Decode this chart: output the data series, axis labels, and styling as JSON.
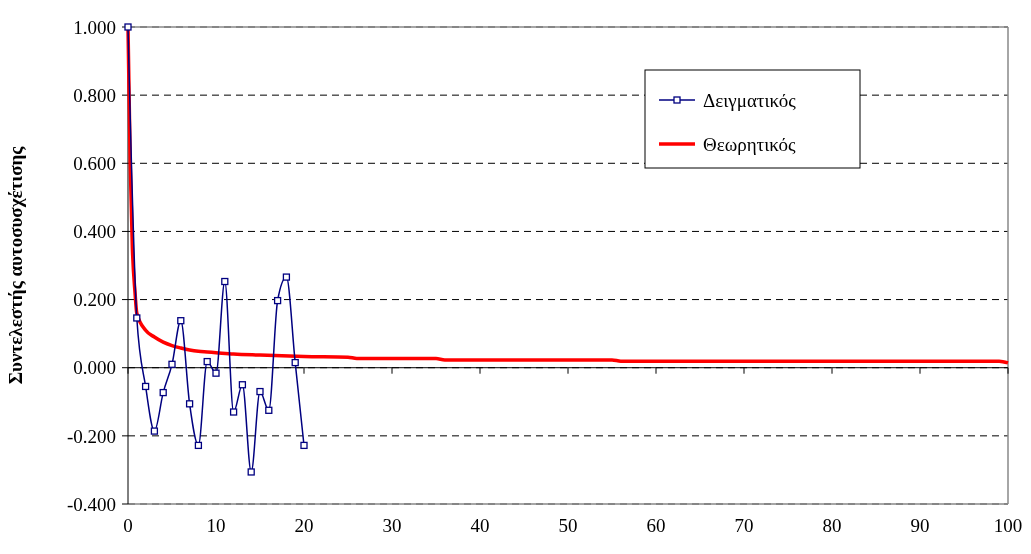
{
  "chart_data": {
    "type": "line",
    "ylabel": "Συντελεστής αυτοσυσχέτισης",
    "xlim": [
      0,
      100
    ],
    "xticks": [
      0,
      10,
      20,
      30,
      40,
      50,
      60,
      70,
      80,
      90,
      100
    ],
    "ylim": [
      -0.4,
      1.0
    ],
    "yticks": [
      {
        "value": -0.4,
        "label": "-0.400"
      },
      {
        "value": -0.2,
        "label": "-0.200"
      },
      {
        "value": 0,
        "label": "0.000"
      },
      {
        "value": 0.2,
        "label": "0.200"
      },
      {
        "value": 0.4,
        "label": "0.400"
      },
      {
        "value": 0.6,
        "label": "0.600"
      },
      {
        "value": 0.8,
        "label": "0.800"
      },
      {
        "value": 1.0,
        "label": "1.000"
      }
    ],
    "grid": "y",
    "legend": "top right",
    "series": [
      {
        "name": "Δειγματικός",
        "color": "#000080",
        "marker": "square",
        "x": [
          0,
          1,
          2,
          3,
          4,
          5,
          6,
          7,
          8,
          9,
          10,
          11,
          12,
          13,
          14,
          15,
          16,
          17,
          18,
          19,
          20
        ],
        "values": [
          1.0,
          0.146,
          -0.055,
          -0.186,
          -0.073,
          0.01,
          0.138,
          -0.106,
          -0.228,
          0.018,
          -0.016,
          0.253,
          -0.13,
          -0.05,
          -0.306,
          -0.07,
          -0.125,
          0.197,
          0.266,
          0.015,
          -0.228
        ]
      },
      {
        "name": "Θεωρητικός",
        "color": "#ff0000",
        "marker": "none",
        "x": [
          0,
          0.25,
          0.5,
          0.8,
          1,
          2,
          3,
          4,
          5,
          6,
          7,
          8,
          9,
          10,
          12,
          15,
          20,
          25,
          26,
          35,
          36,
          55,
          56,
          99,
          100
        ],
        "values": [
          1.0,
          0.6,
          0.35,
          0.22,
          0.16,
          0.11,
          0.09,
          0.075,
          0.065,
          0.058,
          0.052,
          0.048,
          0.046,
          0.044,
          0.04,
          0.037,
          0.033,
          0.031,
          0.027,
          0.027,
          0.023,
          0.023,
          0.019,
          0.019,
          0.014
        ]
      }
    ]
  }
}
